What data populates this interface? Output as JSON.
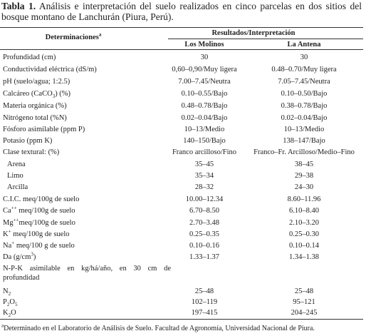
{
  "caption": {
    "label": "Tabla 1.",
    "text": "Análisis e interpretación del suelo realizados en cinco parcelas en dos sitios del bosque montano de Lanchurán (Piura, Perú)."
  },
  "table": {
    "header": {
      "first": [
        {
          "text": "Determinaciones"
        },
        {
          "sup": "a"
        }
      ],
      "group": "Resultados/Interpretación",
      "sites": [
        "Los Molinos",
        "La Antena"
      ]
    },
    "rows": [
      {
        "label": [
          {
            "text": "Profundidad (cm)"
          }
        ],
        "values": [
          "30",
          "30"
        ]
      },
      {
        "label": [
          {
            "text": "Conductividad eléctrica (dS/m)"
          }
        ],
        "values": [
          "0,60–0,90/Muy ligera",
          "0.48–0.70/Muy ligera"
        ]
      },
      {
        "label": [
          {
            "text": "pH (suelo/agua; 1:2.5)"
          }
        ],
        "values": [
          "7.00–7.45/Neutra",
          "7.05–7.45/Neutra"
        ]
      },
      {
        "label": [
          {
            "text": "Calcáreo (CaCO"
          },
          {
            "sub": "3"
          },
          {
            "text": ") (%)"
          }
        ],
        "values": [
          "0.10–0.55/Bajo",
          "0.10–0.50/Bajo"
        ]
      },
      {
        "label": [
          {
            "text": "Materia orgánica (%)"
          }
        ],
        "values": [
          "0.48–0.78/Bajo",
          "0.38–0.78/Bajo"
        ]
      },
      {
        "label": [
          {
            "text": "Nitrógeno total (%N)"
          }
        ],
        "values": [
          "0.02–0.04/Bajo",
          "0.02–0.04/Bajo"
        ]
      },
      {
        "label": [
          {
            "text": "Fósforo asimilable (ppm P)"
          }
        ],
        "values": [
          "10–13/Medio",
          "10–13/Medio"
        ]
      },
      {
        "label": [
          {
            "text": "Potasio (ppm K)"
          }
        ],
        "values": [
          "140–150/Bajo",
          "138–147/Bajo"
        ]
      },
      {
        "label": [
          {
            "text": "Clase textural: (%)"
          }
        ],
        "values": [
          "Franco arcilloso/Fino",
          "Franco–Fr. Arcilloso/Medio–Fino"
        ]
      },
      {
        "label": [
          {
            "text": "Arena"
          }
        ],
        "values": [
          "35–45",
          "38–45"
        ]
      },
      {
        "label": [
          {
            "text": "Limo"
          }
        ],
        "values": [
          "35–34",
          "29–38"
        ]
      },
      {
        "label": [
          {
            "text": "Arcilla"
          }
        ],
        "values": [
          "28–32",
          "24–30"
        ]
      },
      {
        "label": [
          {
            "text": "C.I.C. meq/100g de suelo"
          }
        ],
        "values": [
          "10.00–12.34",
          "8.60–11.96"
        ]
      },
      {
        "label": [
          {
            "text": "Ca"
          },
          {
            "sup": "++"
          },
          {
            "text": " meq/100g de suelo"
          }
        ],
        "values": [
          "6.70–8.50",
          "6.10–8.40"
        ]
      },
      {
        "label": [
          {
            "text": "Mg"
          },
          {
            "sup": "++"
          },
          {
            "text": "meq/100g de suelo"
          }
        ],
        "values": [
          "2.70–3.48",
          "2.10–3.20"
        ]
      },
      {
        "label": [
          {
            "text": "K"
          },
          {
            "sup": "+"
          },
          {
            "text": " meq/100g de suelo"
          }
        ],
        "values": [
          "0.25–0.35",
          "0.25–0.30"
        ]
      },
      {
        "label": [
          {
            "text": "Na"
          },
          {
            "sup": "+"
          },
          {
            "text": " meq/100 g de suelo"
          }
        ],
        "values": [
          "0.10–0.16",
          "0.10–0.14"
        ]
      },
      {
        "label": [
          {
            "text": "Da (g/cm"
          },
          {
            "sup": "3"
          },
          {
            "text": ")"
          }
        ],
        "values": [
          "1.33–1.37",
          "1.34–1.38"
        ]
      },
      {
        "label": [
          {
            "text": "N-P-K asimilable en kg/há/año, en 30 cm de profundidad"
          }
        ],
        "values": []
      },
      {
        "label": [
          {
            "text": "N"
          },
          {
            "sub": "2"
          }
        ],
        "values": [
          "25–48",
          "25–48"
        ]
      },
      {
        "label": [
          {
            "text": "P"
          },
          {
            "sub": "2"
          },
          {
            "text": "O"
          },
          {
            "sub": "5"
          }
        ],
        "values": [
          "102–119",
          "95–121"
        ]
      },
      {
        "label": [
          {
            "text": "K"
          },
          {
            "sub": "2"
          },
          {
            "text": "O"
          }
        ],
        "values": [
          "197–415",
          "204–245"
        ]
      }
    ]
  },
  "footnote": [
    {
      "sup": "a"
    },
    {
      "text": "Determinado en el Laboratorio de Análisis de Suelo. Facultad de Agronomía, Universidad Nacional de Piura."
    }
  ]
}
